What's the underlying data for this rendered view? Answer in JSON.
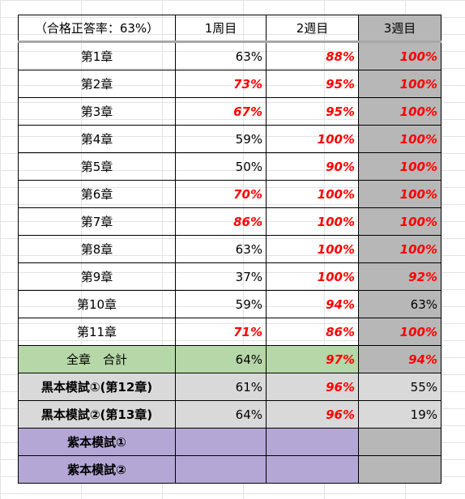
{
  "header": {
    "title": "（合格正答率：63%）",
    "col1": "1周目",
    "col2": "2週目",
    "col3": "3週目"
  },
  "rows": [
    {
      "label": "第1章",
      "v1": "63%",
      "v2": "88%",
      "v3": "100%",
      "r1": false,
      "r2": true,
      "r3": true
    },
    {
      "label": "第2章",
      "v1": "73%",
      "v2": "95%",
      "v3": "100%",
      "r1": true,
      "r2": true,
      "r3": true
    },
    {
      "label": "第3章",
      "v1": "67%",
      "v2": "95%",
      "v3": "100%",
      "r1": true,
      "r2": true,
      "r3": true
    },
    {
      "label": "第4章",
      "v1": "59%",
      "v2": "100%",
      "v3": "100%",
      "r1": false,
      "r2": true,
      "r3": true
    },
    {
      "label": "第5章",
      "v1": "50%",
      "v2": "90%",
      "v3": "100%",
      "r1": false,
      "r2": true,
      "r3": true
    },
    {
      "label": "第6章",
      "v1": "70%",
      "v2": "100%",
      "v3": "100%",
      "r1": true,
      "r2": true,
      "r3": true
    },
    {
      "label": "第7章",
      "v1": "86%",
      "v2": "100%",
      "v3": "100%",
      "r1": true,
      "r2": true,
      "r3": true
    },
    {
      "label": "第8章",
      "v1": "63%",
      "v2": "100%",
      "v3": "100%",
      "r1": false,
      "r2": true,
      "r3": true
    },
    {
      "label": "第9章",
      "v1": "37%",
      "v2": "100%",
      "v3": "92%",
      "r1": false,
      "r2": true,
      "r3": true
    },
    {
      "label": "第10章",
      "v1": "59%",
      "v2": "94%",
      "v3": "63%",
      "r1": false,
      "r2": true,
      "r3": false
    },
    {
      "label": "第11章",
      "v1": "71%",
      "v2": "86%",
      "v3": "100%",
      "r1": true,
      "r2": true,
      "r3": true
    }
  ],
  "total": {
    "label": "全章　合計",
    "v1": "64%",
    "v2": "97%",
    "v3": "94%"
  },
  "mock": [
    {
      "label": "黒本模試①(第12章)",
      "v1": "61%",
      "v2": "96%",
      "v3": "55%"
    },
    {
      "label": "黒本模試②(第13章)",
      "v1": "64%",
      "v2": "96%",
      "v3": "19%"
    }
  ],
  "purple": [
    {
      "label": "紫本模試①"
    },
    {
      "label": "紫本模試②"
    }
  ],
  "colors": {
    "red_text": "#ff0000",
    "col3_fill": "#b7b7b7",
    "total_fill": "#b6d7a8",
    "mock_fill": "#d9d9d9",
    "purple_fill": "#b4a7d6"
  }
}
